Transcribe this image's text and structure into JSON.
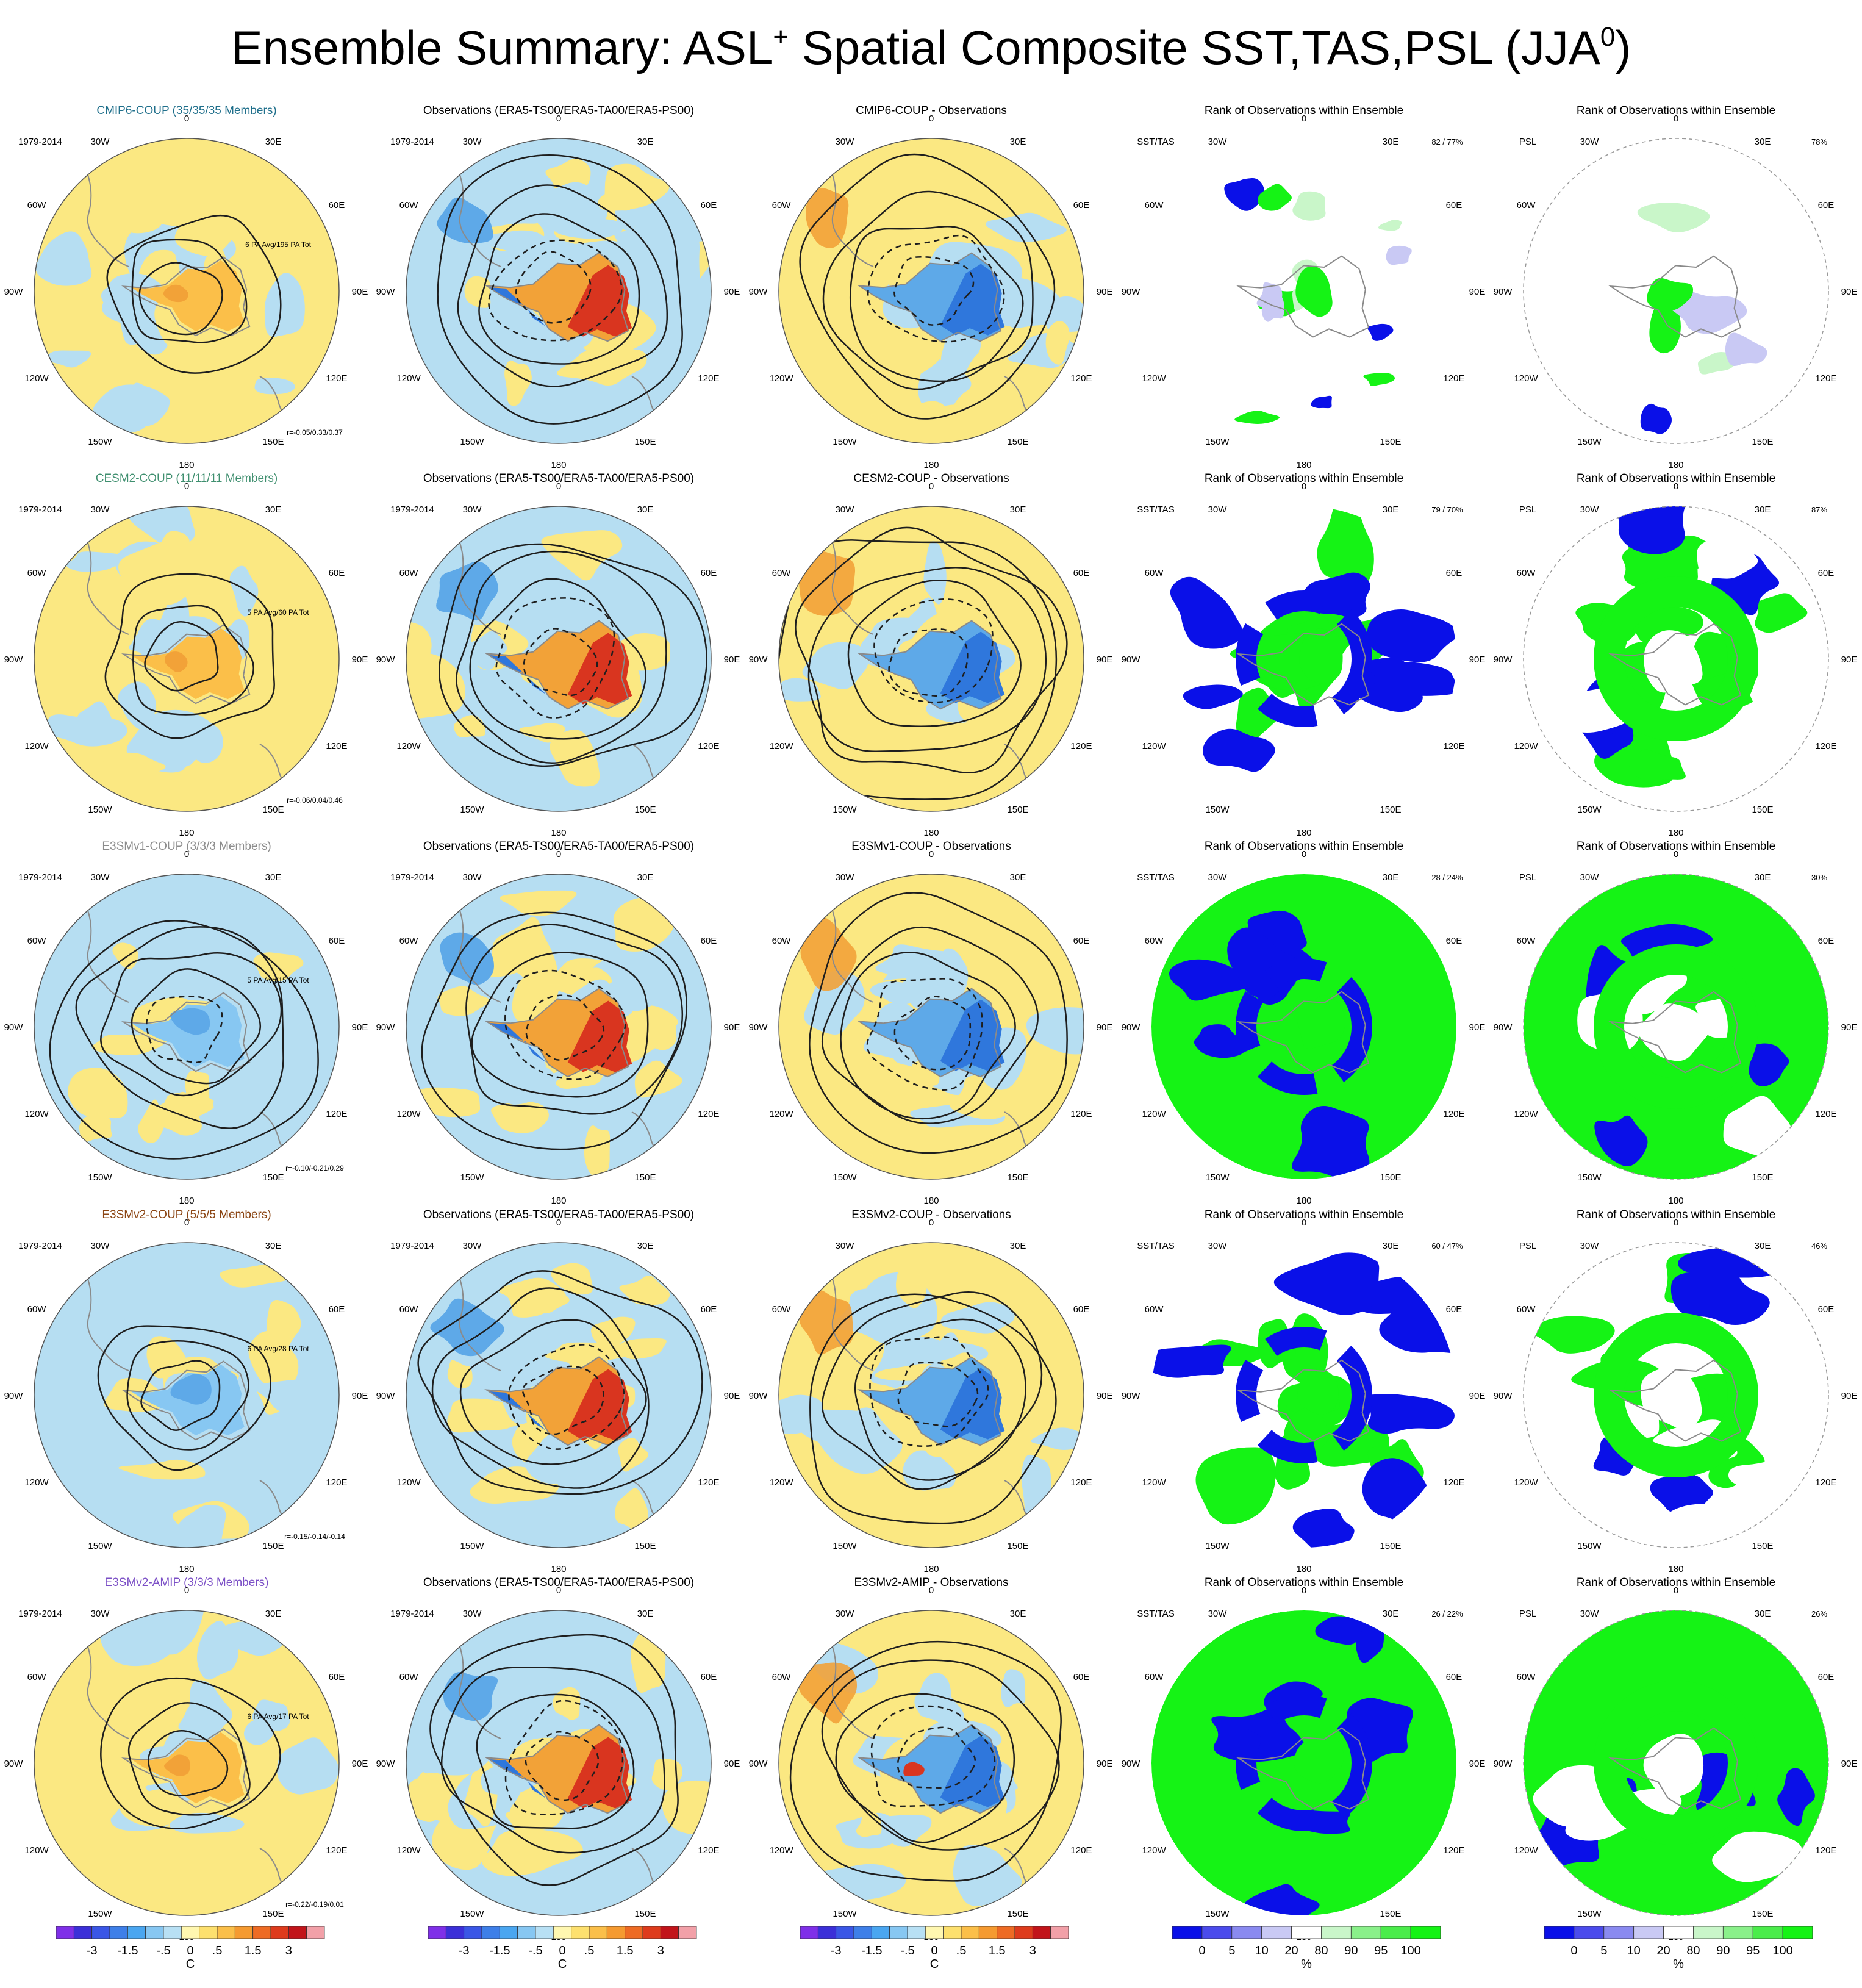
{
  "title": {
    "part1": "Ensemble Summary: ASL",
    "sup1": "+",
    "part2": " Spatial Composite SST,TAS,PSL (JJA",
    "sup2": "0",
    "part3": ")"
  },
  "colors": {
    "ocean_warm": "#fbe882",
    "ocean_cool": "#b6def2",
    "land_warm": "#f2a238",
    "land_hot": "#d9351f",
    "land_cold": "#2f77dc",
    "mid_blue": "#5ea9e8",
    "rank_low": "#0a10e8",
    "rank_high": "#15f315",
    "rank_light_low": "#c9c9f4",
    "rank_light_high": "#c9f6c9",
    "contour": "#1e1e1e",
    "coast": "#8a8a8a"
  },
  "longitude_labels": [
    "0",
    "30E",
    "60E",
    "90E",
    "120E",
    "150E",
    "180",
    "150W",
    "120W",
    "90W",
    "60W",
    "30W"
  ],
  "period": "1979-2014",
  "column_titles": {
    "observations": "Observations (ERA5-TS00/ERA5-TA00/ERA5-PS00)",
    "rank": "Rank of Observations within Ensemble",
    "sst_tas": "SST/TAS",
    "psl": "PSL"
  },
  "rows": [
    {
      "ensemble_title": "CMIP6-COUP (35/35/35 Members)",
      "title_color": "#1f6f8b",
      "pattern_avg": "6 PA Avg/195 PA Tot",
      "correlation": "r=-0.05/0.33/0.37",
      "difference_title": "CMIP6-COUP - Observations",
      "sst_tas_rank": "82 /  77%",
      "psl_rank": "78%"
    },
    {
      "ensemble_title": "CESM2-COUP (11/11/11 Members)",
      "title_color": "#3f8f6f",
      "pattern_avg": "5 PA Avg/60 PA Tot",
      "correlation": "r=-0.06/0.04/0.46",
      "difference_title": "CESM2-COUP - Observations",
      "sst_tas_rank": "79 /  70%",
      "psl_rank": "87%"
    },
    {
      "ensemble_title": "E3SMv1-COUP (3/3/3 Members)",
      "title_color": "#8c8c8c",
      "pattern_avg": "5 PA Avg/15 PA Tot",
      "correlation": "r=-0.10/-0.21/0.29",
      "difference_title": "E3SMv1-COUP - Observations",
      "sst_tas_rank": "28 /  24%",
      "psl_rank": "30%"
    },
    {
      "ensemble_title": "E3SMv2-COUP (5/5/5 Members)",
      "title_color": "#8b4513",
      "pattern_avg": "6 PA Avg/28 PA Tot",
      "correlation": "r=-0.15/-0.14/-0.14",
      "difference_title": "E3SMv2-COUP - Observations",
      "sst_tas_rank": "60 /  47%",
      "psl_rank": "46%"
    },
    {
      "ensemble_title": "E3SMv2-AMIP (3/3/3 Members)",
      "title_color": "#7b4fc6",
      "pattern_avg": "6 PA Avg/17 PA Tot",
      "correlation": "r=-0.22/-0.19/0.01",
      "difference_title": "E3SMv2-AMIP - Observations",
      "sst_tas_rank": "26 /  22%",
      "psl_rank": "26%"
    }
  ],
  "colorbar_temp": {
    "labels": [
      "-3",
      "-1.5",
      "-.5",
      "0",
      ".5",
      "1.5",
      "3"
    ],
    "units": "C",
    "colors": [
      "#7f2fe8",
      "#3b2fd8",
      "#3a56e6",
      "#3e7fe8",
      "#4aa6f0",
      "#87c7f2",
      "#b8e0f4",
      "#fff7b0",
      "#fde06e",
      "#fbbf49",
      "#f59a30",
      "#ee6b24",
      "#de3b1c",
      "#c2141a",
      "#f2a0a8"
    ]
  },
  "colorbar_rank": {
    "labels": [
      "0",
      "5",
      "10",
      "20",
      "80",
      "90",
      "95",
      "100"
    ],
    "units": "%",
    "colors": [
      "#0a10e8",
      "#4b4bec",
      "#8a8af0",
      "#c9c9f4",
      "#ffffff",
      "#c9f6c9",
      "#8af08a",
      "#4bec4b",
      "#15f315"
    ]
  }
}
